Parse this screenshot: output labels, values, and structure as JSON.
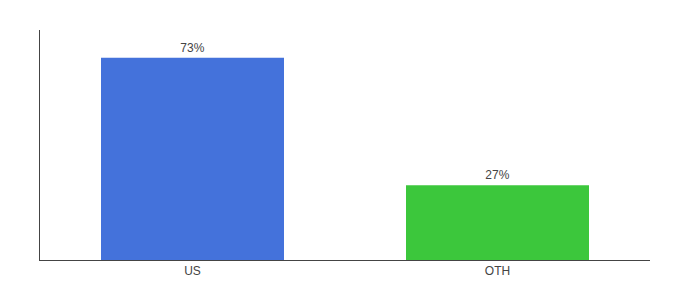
{
  "chart_data": {
    "type": "bar",
    "categories": [
      "US",
      "OTH"
    ],
    "values": [
      73,
      27
    ],
    "value_labels": [
      "73%",
      "27%"
    ],
    "colors": [
      "#4472db",
      "#3cc73c"
    ],
    "data_labels": true,
    "ylim": [
      0,
      83
    ],
    "tick_labels": "x",
    "grid": false
  }
}
